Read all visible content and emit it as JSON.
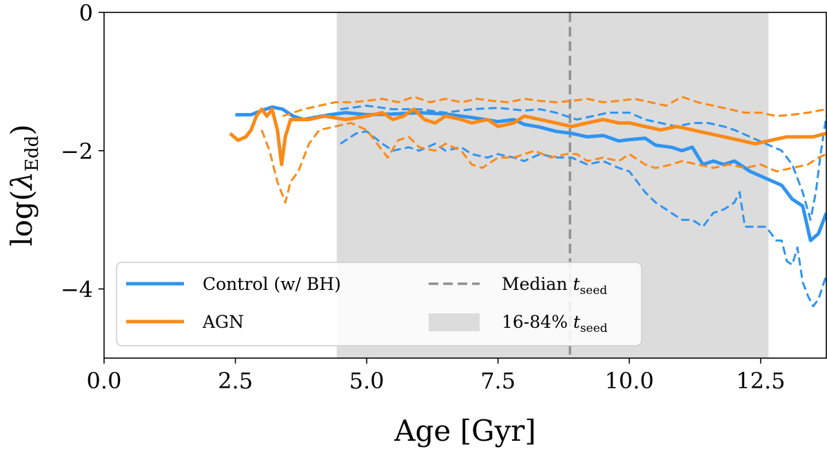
{
  "chart_data": {
    "type": "line",
    "xlabel": "Age [Gyr]",
    "ylabel_main": "log(",
    "ylabel_symbol": "λ",
    "ylabel_sub": "Edd",
    "ylabel_close": ")",
    "xlim": [
      0.0,
      13.75
    ],
    "ylim": [
      -5.0,
      0.0
    ],
    "xticks": [
      0.0,
      2.5,
      5.0,
      7.5,
      10.0,
      12.5
    ],
    "xtick_labels": [
      "0.0",
      "2.5",
      "5.0",
      "7.5",
      "10.0",
      "12.5"
    ],
    "yticks": [
      0,
      -2,
      -4
    ],
    "ytick_labels": [
      "0",
      "−2",
      "−4"
    ],
    "shaded_band": {
      "x0": 4.43,
      "x1": 12.65,
      "color": "#dcdcdc"
    },
    "median_line": {
      "x": 8.87,
      "color": "#909090"
    },
    "series": [
      {
        "name": "Control median",
        "color": "#3094f0",
        "style": "solid",
        "x": [
          2.5,
          2.8,
          3.0,
          3.2,
          3.4,
          3.6,
          3.8,
          4.0,
          4.3,
          4.6,
          5.0,
          5.5,
          6.0,
          6.5,
          7.0,
          7.5,
          7.8,
          8.0,
          8.3,
          8.6,
          8.9,
          9.2,
          9.5,
          9.8,
          10.0,
          10.3,
          10.5,
          10.8,
          11.0,
          11.2,
          11.4,
          11.6,
          11.8,
          12.0,
          12.3,
          12.6,
          12.9,
          13.1,
          13.3,
          13.45,
          13.6,
          13.75
        ],
        "y": [
          -1.48,
          -1.48,
          -1.42,
          -1.37,
          -1.4,
          -1.5,
          -1.55,
          -1.52,
          -1.48,
          -1.45,
          -1.48,
          -1.47,
          -1.45,
          -1.47,
          -1.52,
          -1.58,
          -1.55,
          -1.62,
          -1.66,
          -1.72,
          -1.75,
          -1.8,
          -1.78,
          -1.86,
          -1.84,
          -1.82,
          -1.92,
          -1.95,
          -2.0,
          -1.95,
          -2.2,
          -2.15,
          -2.2,
          -2.15,
          -2.3,
          -2.4,
          -2.5,
          -2.7,
          -2.8,
          -3.3,
          -3.2,
          -2.9
        ]
      },
      {
        "name": "Control 16th percentile",
        "color": "#3094f0",
        "style": "dashed",
        "x": [
          4.5,
          4.8,
          5.0,
          5.3,
          5.5,
          5.8,
          6.0,
          6.3,
          6.5,
          6.8,
          7.0,
          7.3,
          7.5,
          7.8,
          8.0,
          8.3,
          8.6,
          8.9,
          9.2,
          9.5,
          9.8,
          10.0,
          10.3,
          10.5,
          10.8,
          11.0,
          11.2,
          11.4,
          11.6,
          11.8,
          12.0,
          12.1,
          12.2,
          12.4,
          12.6,
          12.8,
          12.9,
          13.0,
          13.1,
          13.2,
          13.3,
          13.4,
          13.5,
          13.6,
          13.75
        ],
        "y": [
          -1.9,
          -1.75,
          -1.72,
          -1.9,
          -2.0,
          -1.95,
          -2.0,
          -1.9,
          -2.0,
          -1.95,
          -2.05,
          -2.1,
          -2.05,
          -2.1,
          -2.15,
          -2.05,
          -2.1,
          -2.1,
          -2.2,
          -2.15,
          -2.25,
          -2.3,
          -2.6,
          -2.75,
          -2.9,
          -3.0,
          -3.0,
          -3.1,
          -2.9,
          -2.85,
          -2.75,
          -2.6,
          -3.1,
          -3.1,
          -3.1,
          -3.3,
          -3.3,
          -3.6,
          -3.65,
          -3.4,
          -3.9,
          -4.1,
          -4.25,
          -4.15,
          -3.8
        ]
      },
      {
        "name": "Control 84th percentile",
        "color": "#3094f0",
        "style": "dashed",
        "x": [
          4.5,
          5.0,
          5.5,
          6.0,
          6.5,
          7.0,
          7.5,
          8.0,
          8.3,
          8.6,
          9.0,
          9.3,
          9.6,
          10.0,
          10.3,
          10.6,
          10.9,
          11.2,
          11.5,
          11.8,
          12.0,
          12.3,
          12.6,
          12.9,
          13.1,
          13.3,
          13.45,
          13.55,
          13.65,
          13.75
        ],
        "y": [
          -1.4,
          -1.35,
          -1.4,
          -1.4,
          -1.45,
          -1.4,
          -1.38,
          -1.42,
          -1.4,
          -1.45,
          -1.55,
          -1.5,
          -1.45,
          -1.45,
          -1.55,
          -1.6,
          -1.65,
          -1.6,
          -1.6,
          -1.65,
          -1.7,
          -1.8,
          -1.9,
          -2.0,
          -2.2,
          -2.6,
          -3.0,
          -2.6,
          -2.0,
          -1.5
        ]
      },
      {
        "name": "AGN median",
        "color": "#fb8a17",
        "style": "solid",
        "x": [
          2.4,
          2.55,
          2.7,
          2.8,
          2.9,
          3.0,
          3.1,
          3.2,
          3.3,
          3.38,
          3.45,
          3.55,
          3.7,
          3.9,
          4.2,
          4.6,
          5.0,
          5.3,
          5.5,
          5.7,
          5.9,
          6.1,
          6.3,
          6.5,
          6.8,
          7.0,
          7.3,
          7.5,
          7.8,
          8.0,
          8.3,
          8.6,
          8.9,
          9.2,
          9.5,
          9.8,
          10.0,
          10.3,
          10.6,
          10.9,
          11.2,
          11.5,
          11.8,
          12.1,
          12.4,
          12.7,
          13.0,
          13.3,
          13.5,
          13.75
        ],
        "y": [
          -1.75,
          -1.85,
          -1.8,
          -1.7,
          -1.5,
          -1.4,
          -1.5,
          -1.4,
          -1.7,
          -2.2,
          -1.8,
          -1.55,
          -1.55,
          -1.55,
          -1.5,
          -1.55,
          -1.5,
          -1.45,
          -1.55,
          -1.5,
          -1.4,
          -1.55,
          -1.6,
          -1.5,
          -1.55,
          -1.6,
          -1.55,
          -1.65,
          -1.6,
          -1.5,
          -1.55,
          -1.6,
          -1.65,
          -1.6,
          -1.55,
          -1.6,
          -1.6,
          -1.65,
          -1.7,
          -1.65,
          -1.7,
          -1.75,
          -1.8,
          -1.85,
          -1.9,
          -1.85,
          -1.8,
          -1.8,
          -1.8,
          -1.75
        ]
      },
      {
        "name": "AGN 16th percentile",
        "color": "#fb8a17",
        "style": "dashed",
        "x": [
          3.0,
          3.15,
          3.3,
          3.45,
          3.55,
          3.7,
          3.9,
          4.1,
          4.4,
          4.7,
          5.0,
          5.2,
          5.4,
          5.6,
          5.8,
          6.0,
          6.3,
          6.5,
          6.8,
          7.0,
          7.2,
          7.5,
          7.8,
          8.0,
          8.2,
          8.5,
          8.8,
          9.0,
          9.2,
          9.5,
          9.8,
          10.0,
          10.3,
          10.5,
          10.8,
          11.0,
          11.3,
          11.6,
          11.9,
          12.2,
          12.5,
          12.8,
          13.1,
          13.4,
          13.6,
          13.75
        ],
        "y": [
          -1.7,
          -2.0,
          -2.45,
          -2.75,
          -2.45,
          -2.3,
          -1.9,
          -1.7,
          -1.65,
          -1.6,
          -1.7,
          -1.9,
          -2.1,
          -1.85,
          -1.8,
          -1.95,
          -2.0,
          -1.9,
          -2.0,
          -2.2,
          -2.25,
          -2.1,
          -2.1,
          -2.05,
          -2.0,
          -2.1,
          -2.05,
          -2.05,
          -2.15,
          -2.1,
          -2.15,
          -2.05,
          -2.2,
          -2.25,
          -2.2,
          -2.15,
          -2.2,
          -2.25,
          -2.2,
          -2.25,
          -2.2,
          -2.3,
          -2.25,
          -2.2,
          -2.1,
          -2.05
        ]
      },
      {
        "name": "AGN 84th percentile",
        "color": "#fb8a17",
        "style": "dashed",
        "x": [
          3.4,
          3.6,
          3.8,
          4.1,
          4.4,
          4.7,
          5.0,
          5.3,
          5.6,
          5.9,
          6.2,
          6.5,
          6.8,
          7.1,
          7.4,
          7.7,
          8.0,
          8.3,
          8.6,
          8.9,
          9.2,
          9.5,
          9.8,
          10.1,
          10.4,
          10.7,
          11.0,
          11.3,
          11.6,
          11.9,
          12.2,
          12.5,
          12.8,
          13.1,
          13.4,
          13.75
        ],
        "y": [
          -1.5,
          -1.45,
          -1.4,
          -1.35,
          -1.3,
          -1.3,
          -1.28,
          -1.25,
          -1.3,
          -1.22,
          -1.3,
          -1.25,
          -1.3,
          -1.25,
          -1.28,
          -1.3,
          -1.25,
          -1.28,
          -1.3,
          -1.28,
          -1.25,
          -1.3,
          -1.28,
          -1.25,
          -1.3,
          -1.35,
          -1.22,
          -1.3,
          -1.35,
          -1.4,
          -1.45,
          -1.45,
          -1.5,
          -1.48,
          -1.45,
          -1.4
        ]
      }
    ],
    "legend": {
      "placement": "lower-left",
      "entries": [
        {
          "label": "Control (w/ BH)",
          "kind": "solid",
          "color": "#3094f0"
        },
        {
          "label": "AGN",
          "kind": "solid",
          "color": "#fb8a17"
        },
        {
          "label_main": "Median ",
          "label_italic": "t",
          "label_sub": "seed",
          "kind": "dashed",
          "color": "#909090"
        },
        {
          "label_main": "16-84% ",
          "label_italic": "t",
          "label_sub": "seed",
          "kind": "patch",
          "color": "#dcdcdc"
        }
      ]
    }
  }
}
